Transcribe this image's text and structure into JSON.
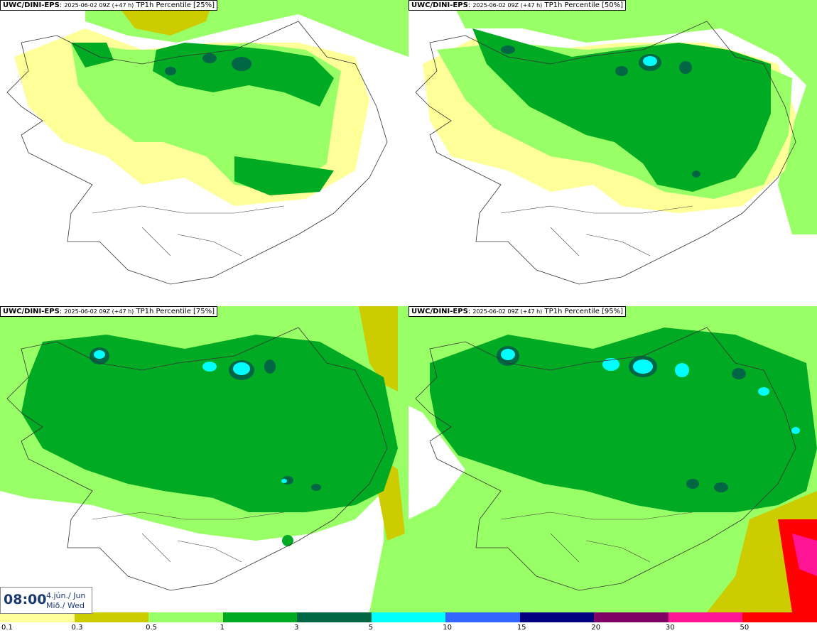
{
  "panels": [
    {
      "source": "UWC/DINI-EPS",
      "run": "2025-06-02 09Z (+47 h)",
      "variable": "TP1h Percentile [25%]"
    },
    {
      "source": "UWC/DINI-EPS",
      "run": "2025-06-02 09Z (+47 h)",
      "variable": "TP1h Percentile [50%]"
    },
    {
      "source": "UWC/DINI-EPS",
      "run": "2025-06-02 09Z (+47 h)",
      "variable": "TP1h Percentile [75%]"
    },
    {
      "source": "UWC/DINI-EPS",
      "run": "2025-06-02 09Z (+47 h)",
      "variable": "TP1h Percentile [95%]"
    }
  ],
  "valid_time": {
    "time": "08:00",
    "date_line1": "4.jún./ Jun",
    "date_line2": "Mið./ Wed"
  },
  "legend": {
    "labels": [
      "0.1",
      "0.3",
      "0.5",
      "1",
      "3",
      "5",
      "10",
      "15",
      "20",
      "30",
      "50"
    ],
    "colors": [
      "#ffff99",
      "#cccc00",
      "#99ff66",
      "#00aa22",
      "#006644",
      "#00ffff",
      "#3366ff",
      "#000080",
      "#800066",
      "#ff1493",
      "#ff0000"
    ]
  }
}
